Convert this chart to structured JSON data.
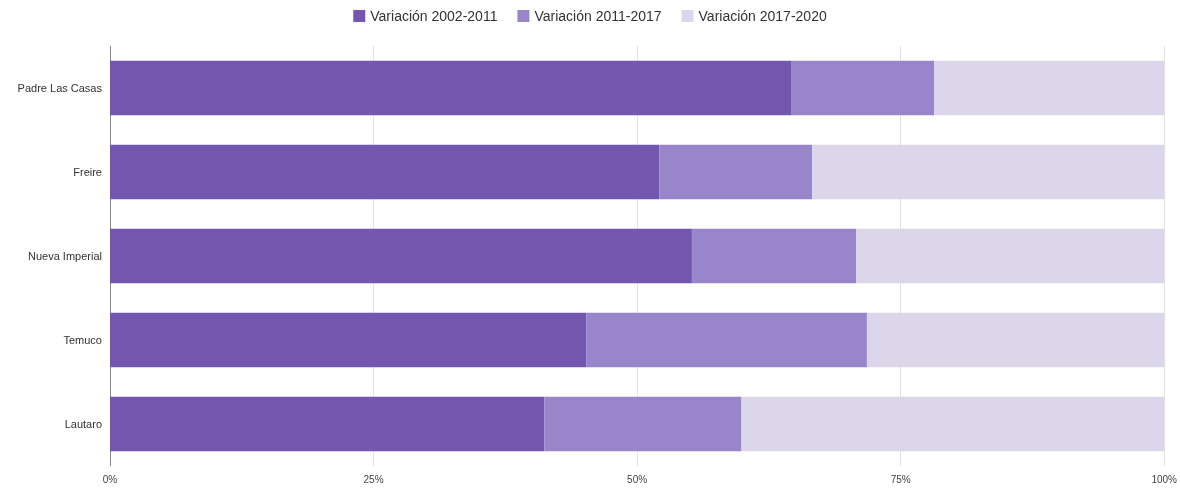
{
  "chart_data": {
    "type": "bar",
    "orientation": "horizontal",
    "stacked": true,
    "categories": [
      "Padre Las Casas",
      "Freire",
      "Nueva Imperial",
      "Temuco",
      "Lautaro"
    ],
    "series": [
      {
        "name": "Variación 2002-2011",
        "color": "#7357ae",
        "values": [
          64.6,
          52.1,
          55.2,
          45.2,
          41.2
        ]
      },
      {
        "name": "Variación 2011-2017",
        "color": "#9985c9",
        "values": [
          13.6,
          14.5,
          15.6,
          26.6,
          18.7
        ]
      },
      {
        "name": "Variación 2017-2020",
        "color": "#dcd6eb",
        "values": [
          21.8,
          33.4,
          29.2,
          28.2,
          40.1
        ]
      }
    ],
    "xlim": [
      0,
      100
    ],
    "xticks": [
      {
        "value": 0,
        "label": "0%"
      },
      {
        "value": 25,
        "label": "25%"
      },
      {
        "value": 50,
        "label": "50%"
      },
      {
        "value": 75,
        "label": "75%"
      },
      {
        "value": 100,
        "label": "100%"
      }
    ],
    "grid": "x",
    "legend": "top"
  }
}
